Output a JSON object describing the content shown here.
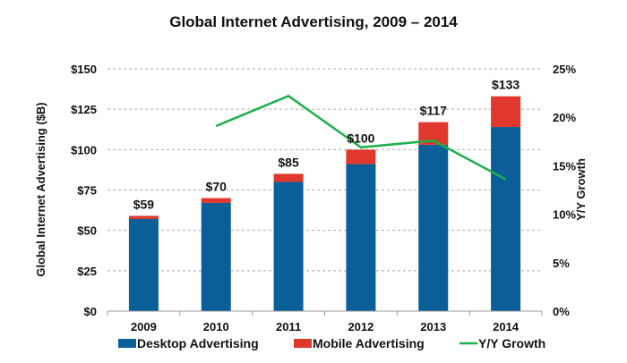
{
  "chart_data": {
    "type": "bar",
    "stacked": true,
    "title": "Global Internet Advertising, 2009 – 2014",
    "xlabel": "",
    "ylabel": "Global Internet Advertising ($B)",
    "y2label": "Y/Y Growth",
    "categories": [
      "2009",
      "2010",
      "2011",
      "2012",
      "2013",
      "2014"
    ],
    "series": [
      {
        "name": "Desktop Advertising",
        "type": "bar",
        "axis": "left",
        "color": "#0a5f98",
        "values": [
          57,
          67,
          80,
          91,
          103,
          114
        ]
      },
      {
        "name": "Mobile Advertising",
        "type": "bar",
        "axis": "left",
        "color": "#e0382c",
        "values": [
          2,
          3,
          5,
          9,
          14,
          19
        ]
      },
      {
        "name": "Y/Y Growth",
        "type": "line",
        "axis": "right",
        "color": "#1db04b",
        "values": [
          null,
          19.1,
          22.2,
          16.9,
          17.6,
          13.6
        ]
      }
    ],
    "totals_labels": [
      "$59",
      "$70",
      "$85",
      "$100",
      "$117",
      "$133"
    ],
    "ylim": [
      0,
      150
    ],
    "yticks": [
      0,
      25,
      50,
      75,
      100,
      125,
      150
    ],
    "ytick_labels": [
      "$0",
      "$25",
      "$50",
      "$75",
      "$100",
      "$125",
      "$150"
    ],
    "y2lim": [
      0,
      25
    ],
    "y2ticks": [
      0,
      5,
      10,
      15,
      20,
      25
    ],
    "y2tick_labels": [
      "0%",
      "5%",
      "10%",
      "15%",
      "20%",
      "25%"
    ],
    "grid": true,
    "legend_position": "bottom"
  }
}
